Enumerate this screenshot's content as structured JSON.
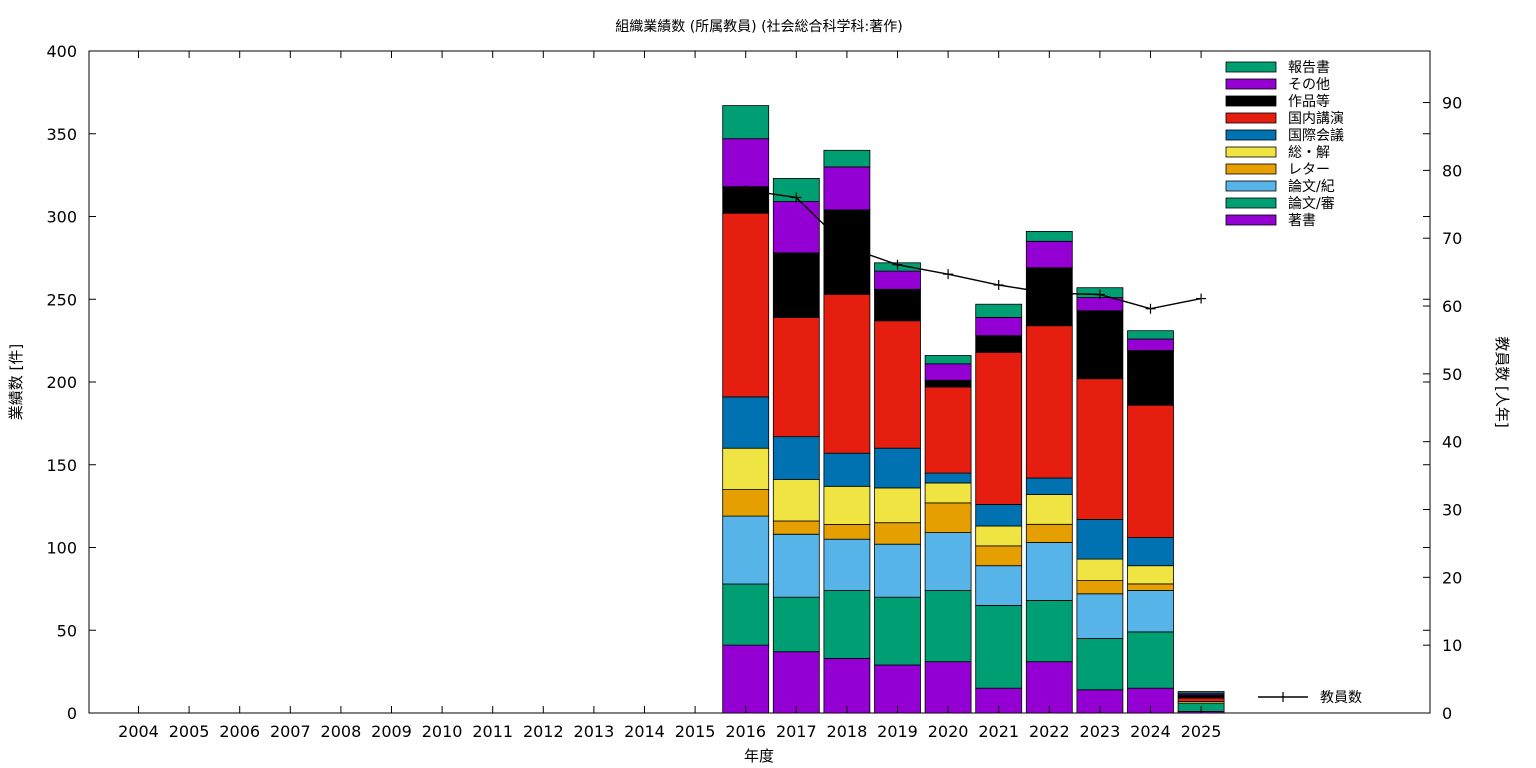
{
  "chart_data": {
    "type": "bar",
    "stacked": true,
    "title": "組織業績数 (所属教員) (社会総合科学科:著作)",
    "xlabel": "年度",
    "ylabel": "業績数 [件]",
    "y2label": "教員数 [人年]",
    "ylim": [
      0,
      400
    ],
    "y2lim": [
      0,
      97.6
    ],
    "yticks": [
      0,
      50,
      100,
      150,
      200,
      250,
      300,
      350,
      400
    ],
    "y2ticks": [
      0,
      10,
      20,
      30,
      40,
      50,
      60,
      70,
      80,
      90
    ],
    "categories": [
      "2004",
      "2005",
      "2006",
      "2007",
      "2008",
      "2009",
      "2010",
      "2011",
      "2012",
      "2013",
      "2014",
      "2015",
      "2016",
      "2017",
      "2018",
      "2019",
      "2020",
      "2021",
      "2022",
      "2023",
      "2024",
      "2025"
    ],
    "grid": false,
    "legend_position": "top-right",
    "series": [
      {
        "name": "著書",
        "color": "#9400d3",
        "values": [
          0,
          0,
          0,
          0,
          0,
          0,
          0,
          0,
          0,
          0,
          0,
          0,
          41,
          37,
          33,
          29,
          31,
          15,
          31,
          14,
          15,
          1
        ]
      },
      {
        "name": "論文/審",
        "color": "#009e73",
        "values": [
          0,
          0,
          0,
          0,
          0,
          0,
          0,
          0,
          0,
          0,
          0,
          0,
          37,
          33,
          41,
          41,
          43,
          50,
          37,
          31,
          34,
          5
        ]
      },
      {
        "name": "論文/紀",
        "color": "#56b4e9",
        "values": [
          0,
          0,
          0,
          0,
          0,
          0,
          0,
          0,
          0,
          0,
          0,
          0,
          41,
          38,
          31,
          32,
          35,
          24,
          35,
          27,
          25,
          0
        ]
      },
      {
        "name": "レター",
        "color": "#e69f00",
        "values": [
          0,
          0,
          0,
          0,
          0,
          0,
          0,
          0,
          0,
          0,
          0,
          0,
          16,
          8,
          9,
          13,
          18,
          12,
          11,
          8,
          4,
          0
        ]
      },
      {
        "name": "総・解",
        "color": "#f0e442",
        "values": [
          0,
          0,
          0,
          0,
          0,
          0,
          0,
          0,
          0,
          0,
          0,
          0,
          25,
          25,
          23,
          21,
          12,
          12,
          18,
          13,
          11,
          1
        ]
      },
      {
        "name": "国際会議",
        "color": "#0072b2",
        "values": [
          0,
          0,
          0,
          0,
          0,
          0,
          0,
          0,
          0,
          0,
          0,
          0,
          31,
          26,
          20,
          24,
          6,
          13,
          10,
          24,
          17,
          0
        ]
      },
      {
        "name": "国内講演",
        "color": "#e51e10",
        "values": [
          0,
          0,
          0,
          0,
          0,
          0,
          0,
          0,
          0,
          0,
          0,
          0,
          111,
          72,
          96,
          77,
          52,
          92,
          92,
          85,
          80,
          2
        ]
      },
      {
        "name": "作品等",
        "color": "#000000",
        "values": [
          0,
          0,
          0,
          0,
          0,
          0,
          0,
          0,
          0,
          0,
          0,
          0,
          16,
          39,
          51,
          19,
          4,
          10,
          35,
          41,
          33,
          2
        ]
      },
      {
        "name": "その他",
        "color": "#9400d3",
        "values": [
          0,
          0,
          0,
          0,
          0,
          0,
          0,
          0,
          0,
          0,
          0,
          0,
          29,
          31,
          26,
          11,
          10,
          11,
          16,
          8,
          7,
          1
        ]
      },
      {
        "name": "報告書",
        "color": "#009e73",
        "values": [
          0,
          0,
          0,
          0,
          0,
          0,
          0,
          0,
          0,
          0,
          0,
          0,
          20,
          14,
          10,
          5,
          5,
          8,
          6,
          6,
          5,
          1
        ]
      }
    ],
    "line_series": {
      "name": "教員数",
      "axis": "y2",
      "color": "#000000",
      "x": [
        "2016",
        "2017",
        "2018",
        "2019",
        "2020",
        "2021",
        "2022",
        "2023",
        "2024",
        "2025"
      ],
      "values": [
        77.1,
        76.0,
        68.7,
        66.1,
        64.7,
        63.1,
        61.9,
        61.7,
        59.6,
        61.1
      ]
    }
  }
}
